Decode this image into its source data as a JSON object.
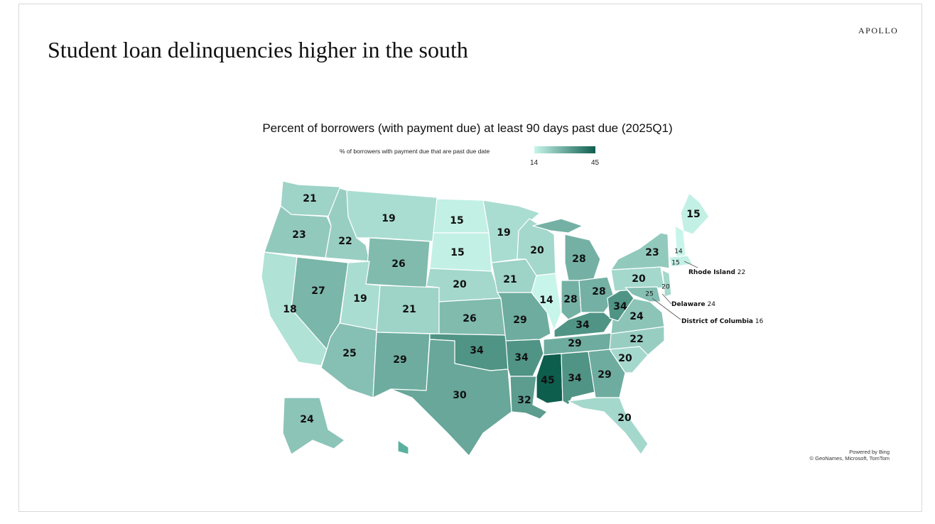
{
  "brand": "APOLLO",
  "headline": "Student loan delinquencies higher in the south",
  "map": {
    "title": "Percent of borrowers (with payment due) at least 90 days past due (2025Q1)",
    "legend": {
      "label": "% of borrowers with payment due that are past due date",
      "min": "14",
      "max": "45",
      "color_low": "#c8f5ea",
      "color_high": "#0e5e4e"
    },
    "credit_line1": "Powered by Bing",
    "credit_line2": "© GeoNames, Microsoft, TomTom",
    "states": {
      "WA": 21,
      "OR": 23,
      "CA": 18,
      "ID": 22,
      "NV": 27,
      "MT": 19,
      "WY": 26,
      "UT": 19,
      "AZ": 25,
      "CO": 21,
      "NM": 29,
      "ND": 15,
      "SD": 15,
      "NE": 20,
      "KS": 26,
      "OK": 34,
      "TX": 30,
      "MN": 19,
      "IA": 21,
      "MO": 29,
      "AR": 34,
      "LA": 32,
      "WI": 20,
      "IL": 14,
      "MI": 28,
      "IN": 28,
      "OH": 28,
      "KY": 34,
      "TN": 29,
      "MS": 45,
      "AL": 34,
      "GA": 29,
      "FL": 20,
      "SC": 20,
      "NC": 22,
      "VA": 24,
      "WV": 34,
      "PA": 20,
      "NY": 23,
      "ME": 15,
      "NH": 14,
      "MA": 15,
      "NJ": 20,
      "MD": 25,
      "AK": 24
    },
    "callouts": [
      {
        "state": "Rhode Island",
        "value": "22"
      },
      {
        "state": "Delaware",
        "value": "24"
      },
      {
        "state": "District of Columbia",
        "value": "16"
      }
    ]
  }
}
